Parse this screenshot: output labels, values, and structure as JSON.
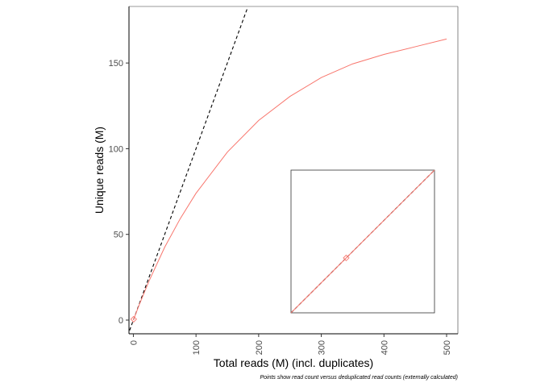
{
  "chart_data": {
    "type": "line",
    "xlabel": "Total reads (M) (incl. duplicates)",
    "ylabel": "Unique reads (M)",
    "caption": "Points show read count versus deduplicated read counts (externally calculated)",
    "xlim": [
      -7,
      518
    ],
    "ylim": [
      -8,
      183
    ],
    "x_ticks": [
      0,
      100,
      200,
      300,
      400,
      500
    ],
    "x_tick_labels": [
      "0",
      "100",
      "200",
      "300",
      "400",
      "500"
    ],
    "y_ticks": [
      0,
      50,
      100,
      150
    ],
    "y_tick_labels": [
      "0",
      "50",
      "100",
      "150"
    ],
    "grid": false,
    "legend": "none",
    "colors": {
      "curve": "#f8766d",
      "diagonal": "#000000",
      "axis": "#000000"
    },
    "series": [
      {
        "type": "line",
        "color": "#f8766d",
        "x": [
          0,
          10,
          25,
          50,
          75,
          100,
          150,
          200,
          250,
          300,
          350,
          400,
          450,
          500
        ],
        "y": [
          0,
          9.5,
          22.8,
          42.5,
          59.3,
          74,
          98,
          116.5,
          130.5,
          141.5,
          149.5,
          155,
          159.5,
          164
        ]
      },
      {
        "type": "dashed-line",
        "color": "#000000",
        "x": [
          -6,
          182
        ],
        "y": [
          -6,
          182
        ]
      },
      {
        "type": "point",
        "shape": "diamond",
        "color": "#f8766d",
        "x": [
          0.5
        ],
        "y": [
          0.5
        ]
      }
    ],
    "inset": {
      "xlim": [
        0,
        1.3
      ],
      "ylim": [
        0,
        1.3
      ],
      "diagonal": {
        "x": [
          0,
          1.3
        ],
        "y": [
          0,
          1.3
        ]
      },
      "curve": {
        "x": [
          0,
          1.3
        ],
        "y": [
          0,
          1.3
        ]
      },
      "point": {
        "x": [
          0.5
        ],
        "y": [
          0.5
        ]
      }
    }
  }
}
